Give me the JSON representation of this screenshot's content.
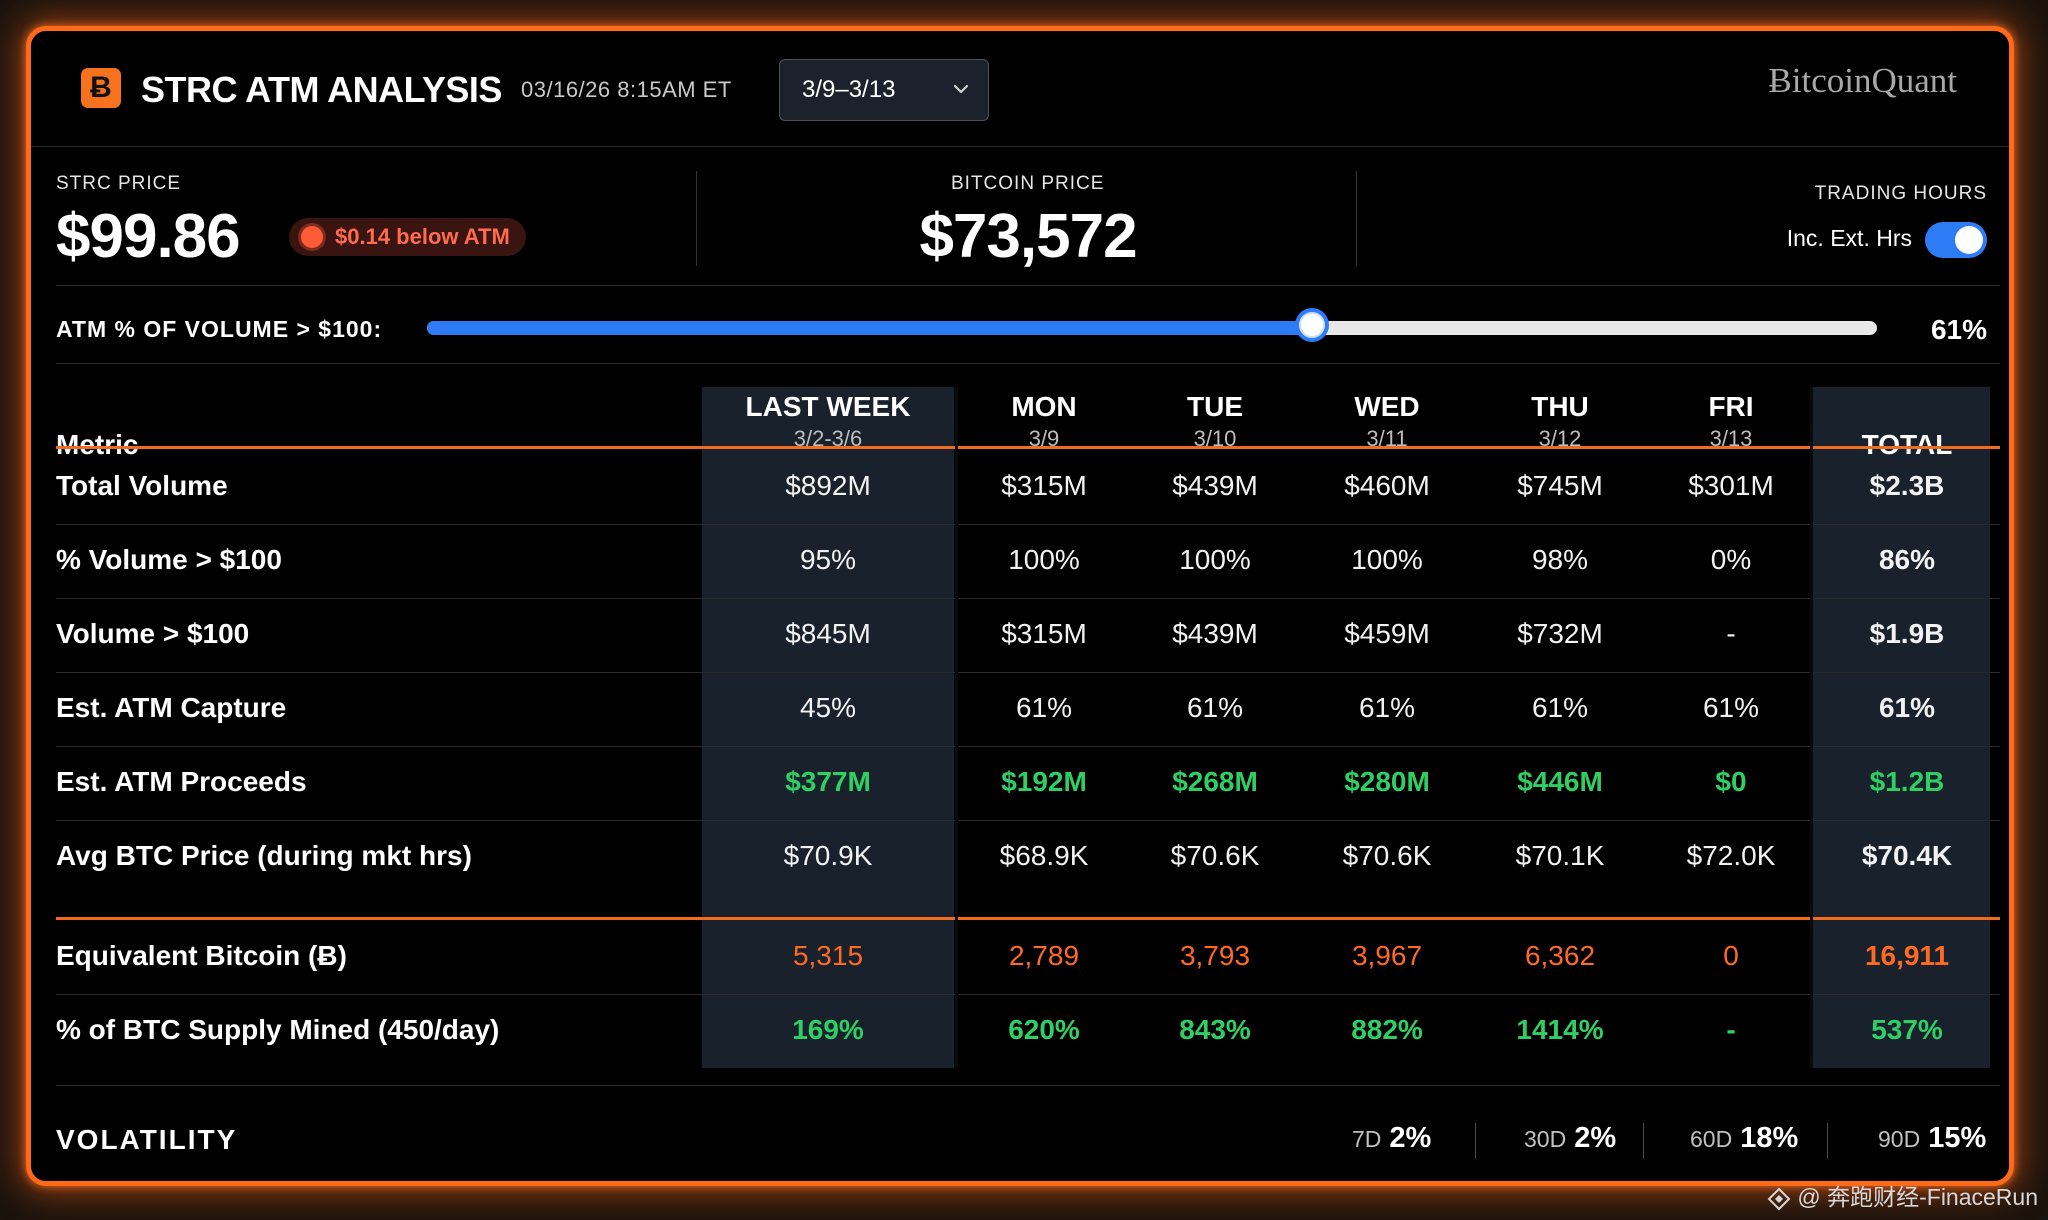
{
  "header": {
    "title": "STRC ATM ANALYSIS",
    "logo_glyph": "Ƀ",
    "timestamp": "03/16/26 8:15AM ET",
    "date_range": "3/9–3/13",
    "brand": "ɃitcoinQuant"
  },
  "stats": {
    "strc_label": "STRC PRICE",
    "strc_value": "$99.86",
    "badge": "$0.14 below ATM",
    "btc_label": "BITCOIN PRICE",
    "btc_value": "$73,572",
    "trading_hours_label": "TRADING HOURS",
    "toggle_label": "Inc. Ext. Hrs",
    "toggle_on": true
  },
  "slider": {
    "label": "ATM % OF VOLUME > $100:",
    "value_text": "61%",
    "value": 0.61
  },
  "table": {
    "metric_header": "Metric",
    "columns": [
      {
        "label": "LAST WEEK",
        "sub": "3/2-3/6"
      },
      {
        "label": "MON",
        "sub": "3/9"
      },
      {
        "label": "TUE",
        "sub": "3/10"
      },
      {
        "label": "WED",
        "sub": "3/11"
      },
      {
        "label": "THU",
        "sub": "3/12"
      },
      {
        "label": "FRI",
        "sub": "3/13"
      },
      {
        "label": "TOTAL",
        "sub": ""
      }
    ],
    "rows": [
      {
        "label": "Total Volume",
        "style": "normal",
        "values": [
          "$892M",
          "$315M",
          "$439M",
          "$460M",
          "$745M",
          "$301M",
          "$2.3B"
        ]
      },
      {
        "label": "% Volume > $100",
        "style": "normal",
        "values": [
          "95%",
          "100%",
          "100%",
          "100%",
          "98%",
          "0%",
          "86%"
        ]
      },
      {
        "label": "Volume > $100",
        "style": "normal",
        "values": [
          "$845M",
          "$315M",
          "$439M",
          "$459M",
          "$732M",
          "-",
          "$1.9B"
        ]
      },
      {
        "label": "Est. ATM Capture",
        "style": "normal",
        "values": [
          "45%",
          "61%",
          "61%",
          "61%",
          "61%",
          "61%",
          "61%"
        ]
      },
      {
        "label": "Est. ATM Proceeds",
        "style": "green",
        "values": [
          "$377M",
          "$192M",
          "$268M",
          "$280M",
          "$446M",
          "$0",
          "$1.2B"
        ]
      },
      {
        "label": "Avg BTC Price (during mkt hrs)",
        "style": "normal",
        "values": [
          "$70.9K",
          "$68.9K",
          "$70.6K",
          "$70.6K",
          "$70.1K",
          "$72.0K",
          "$70.4K"
        ]
      },
      {
        "label": "Equivalent Bitcoin (Ƀ)",
        "style": "orange",
        "values": [
          "5,315",
          "2,789",
          "3,793",
          "3,967",
          "6,362",
          "0",
          "16,911"
        ]
      },
      {
        "label": "% of BTC Supply Mined (450/day)",
        "style": "green",
        "values": [
          "169%",
          "620%",
          "843%",
          "882%",
          "1414%",
          "-",
          "537%"
        ]
      }
    ]
  },
  "volatility": {
    "label": "VOLATILITY",
    "items": [
      {
        "period": "7D",
        "value": "2%"
      },
      {
        "period": "30D",
        "value": "2%"
      },
      {
        "period": "60D",
        "value": "18%"
      },
      {
        "period": "90D",
        "value": "15%"
      }
    ]
  },
  "watermark": "@ 奔跑财经-FinaceRun",
  "colors": {
    "accent": "#f26a1b",
    "toggle": "#2d7cf6",
    "green": "#2fcf64",
    "orange": "#ff6a22",
    "badge_red": "#ff6b4e"
  }
}
